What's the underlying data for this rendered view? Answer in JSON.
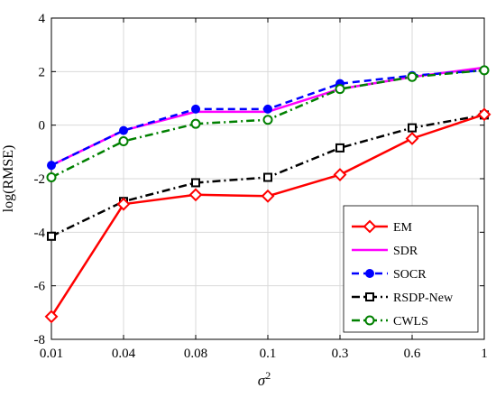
{
  "chart_data": {
    "type": "line",
    "title": "",
    "xlabel": "σ",
    "xlabel_superscript": "2",
    "ylabel": "log(RMSE)",
    "categories": [
      "0.01",
      "0.04",
      "0.08",
      "0.1",
      "0.3",
      "0.6",
      "1"
    ],
    "ylim": [
      -8,
      4
    ],
    "yticks": [
      "-8",
      "-6",
      "-4",
      "-2",
      "0",
      "2",
      "4"
    ],
    "grid": true,
    "legend_position": "bottom-right",
    "series": [
      {
        "name": "EM",
        "color": "#ff0000",
        "dash": "solid",
        "marker": "diamond",
        "values": [
          -7.15,
          -2.95,
          -2.6,
          -2.65,
          -1.85,
          -0.5,
          0.4
        ]
      },
      {
        "name": "SDR",
        "color": "#ff00ff",
        "dash": "solid",
        "marker": "none",
        "values": [
          -1.5,
          -0.2,
          0.5,
          0.5,
          1.35,
          1.8,
          2.15
        ]
      },
      {
        "name": "SOCR",
        "color": "#0000ff",
        "dash": "dashed",
        "marker": "circle-filled",
        "values": [
          -1.5,
          -0.2,
          0.6,
          0.6,
          1.55,
          1.85,
          2.05
        ]
      },
      {
        "name": "RSDP-New",
        "color": "#000000",
        "dash": "dashdot",
        "marker": "square",
        "values": [
          -4.15,
          -2.85,
          -2.15,
          -1.95,
          -0.85,
          -0.1,
          0.38
        ]
      },
      {
        "name": "CWLS",
        "color": "#008000",
        "dash": "dashdot",
        "marker": "circle-open",
        "values": [
          -1.95,
          -0.6,
          0.05,
          0.2,
          1.35,
          1.8,
          2.05
        ]
      }
    ]
  }
}
